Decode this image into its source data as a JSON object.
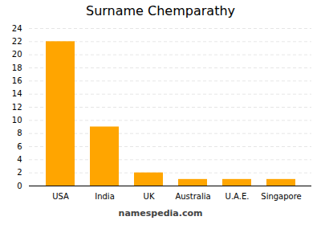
{
  "chart_data": {
    "type": "bar",
    "title": "Surname Chemparathy",
    "categories": [
      "USA",
      "India",
      "UK",
      "Australia",
      "U.A.E.",
      "Singapore"
    ],
    "values": [
      22,
      9,
      2,
      1,
      1,
      1
    ],
    "color": "#FFA500",
    "ylim": [
      0,
      24
    ],
    "yticks": [
      0,
      2,
      4,
      6,
      8,
      10,
      12,
      14,
      16,
      18,
      20,
      22,
      24
    ],
    "grid": true,
    "caption": "namespedia.com"
  }
}
